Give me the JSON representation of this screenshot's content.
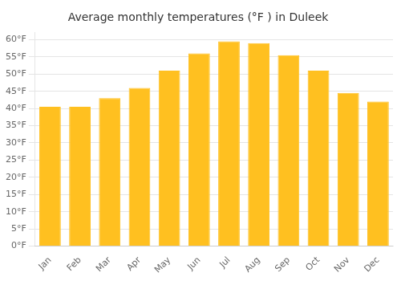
{
  "chart_data": {
    "type": "bar",
    "title": "Average monthly temperatures (°F ) in Duleek",
    "categories": [
      "Jan",
      "Feb",
      "Mar",
      "Apr",
      "May",
      "Jun",
      "Jul",
      "Aug",
      "Sep",
      "Oct",
      "Nov",
      "Dec"
    ],
    "values": [
      40.5,
      40.5,
      43.0,
      46.0,
      51.0,
      56.0,
      59.5,
      59.0,
      55.5,
      51.0,
      44.5,
      42.0
    ],
    "color": "#FFC020",
    "ylim": [
      0,
      62
    ],
    "yticks": [
      {
        "value": 0,
        "label": "0°F"
      },
      {
        "value": 5,
        "label": "5°F"
      },
      {
        "value": 10,
        "label": "10°F"
      },
      {
        "value": 15,
        "label": "15°F"
      },
      {
        "value": 20,
        "label": "20°F"
      },
      {
        "value": 25,
        "label": "25°F"
      },
      {
        "value": 30,
        "label": "30°F"
      },
      {
        "value": 35,
        "label": "35°F"
      },
      {
        "value": 40,
        "label": "40°F"
      },
      {
        "value": 45,
        "label": "45°F"
      },
      {
        "value": 50,
        "label": "50°F"
      },
      {
        "value": 55,
        "label": "55°F"
      },
      {
        "value": 60,
        "label": "60°F"
      }
    ],
    "grid": true
  }
}
